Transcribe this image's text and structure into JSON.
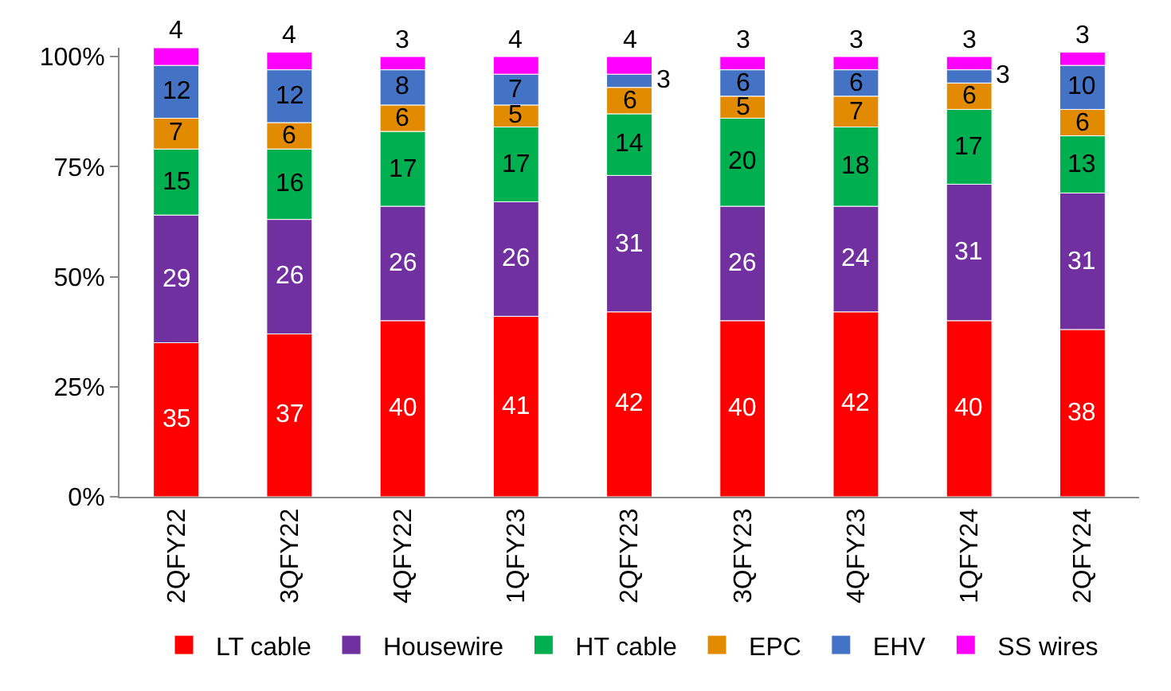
{
  "chart_data": {
    "type": "bar",
    "stacked": true,
    "data_labels": true,
    "legend": "bottom",
    "grid": false,
    "categories": [
      "2QFY22",
      "3QFY22",
      "4QFY22",
      "1QFY23",
      "2QFY23",
      "3QFY23",
      "4QFY23",
      "1QFY24",
      "2QFY24"
    ],
    "ylim": [
      0,
      102
    ],
    "yticks": [
      {
        "value": 0,
        "label": "0%"
      },
      {
        "value": 25,
        "label": "25%"
      },
      {
        "value": 50,
        "label": "50%"
      },
      {
        "value": 75,
        "label": "75%"
      },
      {
        "value": 100,
        "label": "100%"
      }
    ],
    "series": [
      {
        "name": "LT cable",
        "color": "#ff0000",
        "values": [
          35,
          37,
          40,
          41,
          42,
          40,
          42,
          40,
          38
        ]
      },
      {
        "name": "Housewire",
        "color": "#7030a0",
        "values": [
          29,
          26,
          26,
          26,
          31,
          26,
          24,
          31,
          31
        ]
      },
      {
        "name": "HT cable",
        "color": "#00b050",
        "values": [
          15,
          16,
          17,
          17,
          14,
          20,
          18,
          17,
          13
        ]
      },
      {
        "name": "EPC",
        "color": "#e38b00",
        "values": [
          7,
          6,
          6,
          5,
          6,
          5,
          7,
          6,
          6
        ]
      },
      {
        "name": "EHV",
        "color": "#4472c4",
        "values": [
          12,
          12,
          8,
          7,
          3,
          6,
          6,
          3,
          10
        ]
      },
      {
        "name": "SS wires",
        "color": "#ff00ff",
        "values": [
          4,
          4,
          3,
          4,
          4,
          3,
          3,
          3,
          3
        ]
      }
    ]
  }
}
